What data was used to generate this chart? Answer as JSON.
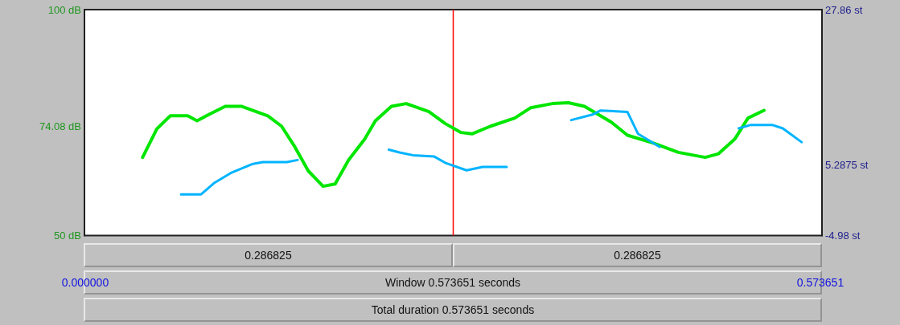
{
  "chart_data": {
    "type": "line",
    "xlabel": "Window 0.573651 seconds",
    "annotations": [
      "0.286825",
      "0.286825",
      "Total duration 0.573651 seconds"
    ],
    "xticks": [
      {
        "value": 0,
        "label": "0.000000"
      },
      {
        "value": 0.573651,
        "label": "0.573651"
      }
    ],
    "xlim": [
      0,
      0.573651
    ],
    "ylim": [
      50,
      100
    ],
    "yticks": [
      {
        "value": 50,
        "label": "50 dB"
      },
      {
        "value": 74.08,
        "label": "74.08 dB"
      },
      {
        "value": 100,
        "label": "100 dB"
      }
    ],
    "y2lim": [
      -4.98,
      27.86
    ],
    "y2ticks": [
      {
        "value": -4.98,
        "label": "-4.98 st"
      },
      {
        "value": 5.2875,
        "label": "5.2875 st"
      },
      {
        "value": 27.86,
        "label": "27.86 st"
      }
    ],
    "marker": "none",
    "line_style": "solid",
    "grid": false,
    "ref_lines": [
      {
        "axis": "x",
        "value": 0.286825,
        "color": "#ff0000"
      }
    ],
    "series": [
      {
        "color": "#00e600",
        "x": [
          0.0452,
          0.0563,
          0.0668,
          0.0803,
          0.0876,
          0.0949,
          0.1095,
          0.122,
          0.1426,
          0.1533,
          0.1637,
          0.1741,
          0.1856,
          0.195,
          0.2054,
          0.2179,
          0.2263,
          0.2388,
          0.2502,
          0.2679,
          0.2805,
          0.293,
          0.3014,
          0.3159,
          0.3347,
          0.3472,
          0.3639,
          0.3764,
          0.3889,
          0.4098,
          0.4223,
          0.4431,
          0.4619,
          0.4828,
          0.4932,
          0.5057,
          0.5161,
          0.5286
        ],
        "values": [
          67.3,
          73.6,
          76.5,
          76.5,
          75.4,
          76.5,
          78.6,
          78.6,
          76.5,
          74.2,
          69.6,
          64.3,
          60.9,
          61.4,
          66.7,
          71.3,
          75.4,
          78.6,
          79.2,
          77.4,
          74.8,
          72.8,
          72.5,
          74.2,
          76.0,
          78.3,
          79.2,
          79.4,
          78.6,
          75.1,
          72.2,
          70.4,
          68.4,
          67.3,
          68.1,
          71.3,
          76.0,
          77.7
        ]
      },
      {
        "color": "#00b4ff",
        "axis": "y2",
        "x": [
          0.0751,
          0.0907,
          0.1012,
          0.1137,
          0.1303,
          0.1387,
          0.1575,
          0.1658
        ],
        "values": [
          1.0,
          1.0,
          2.7,
          4.1,
          5.4,
          5.7,
          5.7,
          6.0
        ]
      },
      {
        "color": "#00b4ff",
        "axis": "y2",
        "x": [
          0.2367,
          0.2451,
          0.2554,
          0.2721,
          0.2805,
          0.2972,
          0.3097,
          0.3284
        ],
        "values": [
          7.5,
          7.1,
          6.7,
          6.5,
          5.6,
          4.5,
          5.0,
          5.0
        ]
      },
      {
        "color": "#00b4ff",
        "axis": "y2",
        "x": [
          0.3786,
          0.3952,
          0.4015,
          0.4223,
          0.4306,
          0.4473
        ],
        "values": [
          11.8,
          12.6,
          13.2,
          13.0,
          9.8,
          7.9
        ]
      },
      {
        "color": "#00b4ff",
        "axis": "y2",
        "x": [
          0.5088,
          0.5182,
          0.5349,
          0.5432,
          0.5578
        ],
        "values": [
          10.6,
          11.1,
          11.1,
          10.6,
          8.6
        ]
      }
    ]
  }
}
